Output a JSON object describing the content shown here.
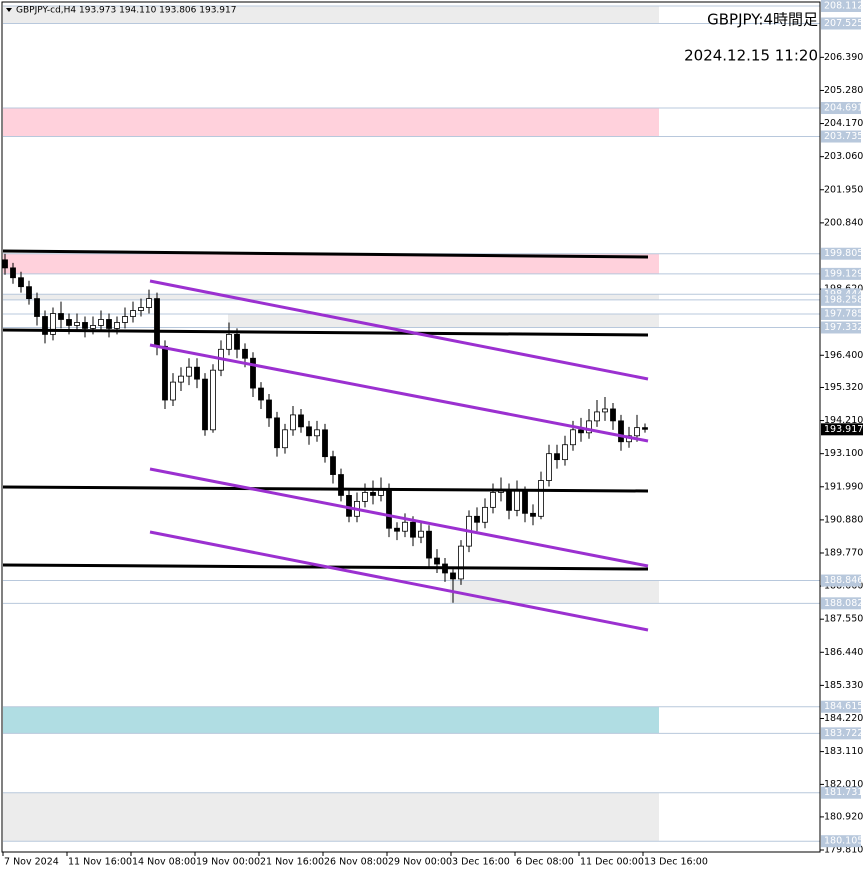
{
  "chart_data": {
    "type": "candlestick",
    "info_text": "GBPJPY-cd,H4  193.973 194.110 193.806 193.917",
    "overlay_texts": [
      "GBPJPY:4時間足",
      "2024.12.15 11:20"
    ],
    "candles": {
      "open": [
        199.6,
        199.33,
        199.0,
        198.7,
        198.3,
        197.7,
        197.1,
        197.8,
        197.6,
        197.4,
        197.5,
        197.3,
        197.4,
        197.6,
        197.3,
        197.5,
        197.7,
        197.9,
        198.0,
        198.3,
        196.7,
        194.9,
        195.5,
        195.7,
        196.0,
        195.6,
        193.9,
        195.9,
        196.6,
        197.1,
        196.6,
        196.3,
        195.3,
        194.9,
        194.3,
        193.3,
        193.9,
        194.4,
        194.0,
        193.7,
        193.9,
        193.0,
        192.4,
        191.7,
        191.0,
        191.5,
        191.8,
        191.7,
        191.9,
        190.6,
        190.5,
        190.8,
        190.3,
        190.5,
        189.6,
        189.4,
        189.1,
        188.9,
        190.0,
        191.0,
        190.8,
        191.3,
        191.8,
        191.9,
        191.2,
        191.9,
        191.1,
        191.0,
        192.2,
        193.1,
        192.9,
        193.4,
        193.9,
        193.8,
        194.2,
        194.5,
        194.6,
        194.2,
        193.5,
        193.7,
        193.973
      ],
      "high": [
        199.8,
        199.5,
        199.2,
        198.9,
        198.5,
        197.9,
        198.0,
        198.2,
        197.8,
        197.8,
        197.7,
        197.7,
        197.9,
        197.8,
        197.7,
        198.0,
        198.2,
        198.3,
        198.6,
        198.5,
        196.9,
        195.8,
        196.0,
        196.3,
        196.3,
        195.8,
        196.1,
        196.9,
        197.5,
        197.3,
        196.8,
        196.5,
        195.5,
        195.1,
        194.5,
        194.1,
        194.7,
        194.6,
        194.2,
        194.2,
        194.1,
        193.2,
        192.6,
        191.9,
        191.8,
        192.1,
        192.2,
        192.3,
        192.1,
        190.8,
        191.1,
        191.0,
        190.8,
        190.7,
        189.9,
        189.6,
        189.3,
        190.2,
        191.2,
        191.3,
        191.6,
        192.1,
        192.3,
        192.1,
        192.2,
        192.0,
        191.4,
        192.5,
        193.4,
        193.4,
        193.7,
        194.2,
        194.3,
        194.6,
        194.9,
        195.0,
        194.8,
        194.4,
        194.0,
        194.4,
        194.11
      ],
      "low": [
        199.1,
        198.8,
        198.5,
        198.1,
        197.4,
        196.8,
        196.9,
        197.3,
        197.1,
        197.2,
        197.0,
        197.1,
        197.2,
        197.0,
        197.1,
        197.3,
        197.5,
        197.7,
        197.8,
        196.4,
        194.6,
        194.7,
        195.2,
        195.4,
        195.3,
        193.7,
        193.8,
        195.7,
        196.4,
        196.3,
        196.0,
        195.0,
        194.6,
        194.0,
        193.0,
        193.1,
        193.7,
        193.8,
        193.4,
        193.5,
        192.8,
        192.1,
        191.5,
        190.8,
        190.8,
        191.3,
        191.4,
        191.5,
        190.3,
        190.2,
        190.3,
        190.0,
        190.1,
        189.3,
        189.1,
        188.8,
        188.1,
        188.7,
        189.8,
        190.5,
        190.6,
        191.1,
        191.5,
        190.9,
        191.0,
        190.8,
        190.7,
        190.9,
        192.0,
        192.6,
        192.7,
        193.2,
        193.5,
        193.6,
        194.0,
        194.2,
        193.9,
        193.2,
        193.3,
        193.5,
        193.806
      ],
      "close": [
        199.33,
        199.0,
        198.7,
        198.3,
        197.7,
        197.1,
        197.8,
        197.6,
        197.4,
        197.5,
        197.3,
        197.4,
        197.6,
        197.3,
        197.5,
        197.7,
        197.9,
        198.0,
        198.3,
        196.7,
        194.9,
        195.5,
        195.7,
        196.0,
        195.6,
        193.9,
        195.9,
        196.6,
        197.1,
        196.6,
        196.3,
        195.3,
        194.9,
        194.3,
        193.3,
        193.9,
        194.4,
        194.0,
        193.7,
        193.9,
        193.0,
        192.4,
        191.7,
        191.0,
        191.5,
        191.8,
        191.7,
        191.9,
        190.6,
        190.5,
        190.8,
        190.3,
        190.5,
        189.6,
        189.4,
        189.1,
        188.9,
        190.0,
        191.0,
        190.8,
        191.3,
        191.8,
        191.9,
        191.2,
        191.9,
        191.1,
        191.0,
        192.2,
        193.1,
        192.9,
        193.4,
        193.9,
        193.8,
        194.2,
        194.5,
        194.6,
        194.2,
        193.5,
        193.7,
        193.973,
        193.917
      ]
    },
    "xlim": [
      -0.25,
      81.75
    ],
    "xticks": [
      {
        "value": -0.25,
        "label": "7 Nov 2024"
      },
      {
        "value": 7.75,
        "label": "11 Nov 16:00"
      },
      {
        "value": 15.75,
        "label": "14 Nov 08:00"
      },
      {
        "value": 23.75,
        "label": "19 Nov 00:00"
      },
      {
        "value": 31.75,
        "label": "21 Nov 16:00"
      },
      {
        "value": 39.75,
        "label": "26 Nov 08:00"
      },
      {
        "value": 47.75,
        "label": "29 Nov 00:00"
      },
      {
        "value": 55.75,
        "label": "3 Dec 16:00"
      },
      {
        "value": 63.75,
        "label": "6 Dec 08:00"
      },
      {
        "value": 71.75,
        "label": "11 Dec 00:00"
      },
      {
        "value": 79.75,
        "label": "13 Dec 16:00"
      }
    ],
    "ylim": [
      179.81,
      208.112
    ],
    "yticks": [
      {
        "value": 206.39,
        "label": "206.390"
      },
      {
        "value": 205.28,
        "label": "205.280"
      },
      {
        "value": 204.17,
        "label": "204.170"
      },
      {
        "value": 203.06,
        "label": "203.060"
      },
      {
        "value": 201.95,
        "label": "201.950"
      },
      {
        "value": 200.84,
        "label": "200.840"
      },
      {
        "value": 198.62,
        "label": "198.620"
      },
      {
        "value": 196.4,
        "label": "196.400"
      },
      {
        "value": 195.32,
        "label": "195.320"
      },
      {
        "value": 194.21,
        "label": "194.210"
      },
      {
        "value": 193.1,
        "label": "193.100"
      },
      {
        "value": 191.99,
        "label": "191.990"
      },
      {
        "value": 190.88,
        "label": "190.880"
      },
      {
        "value": 189.77,
        "label": "189.770"
      },
      {
        "value": 188.66,
        "label": "188.660"
      },
      {
        "value": 187.55,
        "label": "187.550"
      },
      {
        "value": 186.44,
        "label": "186.440"
      },
      {
        "value": 185.33,
        "label": "185.330"
      },
      {
        "value": 184.22,
        "label": "184.220"
      },
      {
        "value": 183.11,
        "label": "183.110"
      },
      {
        "value": 182.01,
        "label": "182.010"
      },
      {
        "value": 180.92,
        "label": "180.920"
      },
      {
        "value": 179.81,
        "label": "179.810"
      }
    ],
    "levels": [
      {
        "value": 208.112,
        "label": "208.112"
      },
      {
        "value": 207.525,
        "label": "207.525"
      },
      {
        "value": 204.691,
        "label": "204.691"
      },
      {
        "value": 203.735,
        "label": "203.735"
      },
      {
        "value": 199.805,
        "label": "199.805"
      },
      {
        "value": 199.129,
        "label": "199.129"
      },
      {
        "value": 198.444,
        "label": "198.444"
      },
      {
        "value": 198.258,
        "label": "198.258"
      },
      {
        "value": 197.785,
        "label": "197.785"
      },
      {
        "value": 197.332,
        "label": "197.332"
      },
      {
        "value": 188.846,
        "label": "188.846"
      },
      {
        "value": 188.082,
        "label": "188.082"
      },
      {
        "value": 184.615,
        "label": "184.615"
      },
      {
        "value": 183.722,
        "label": "183.722"
      },
      {
        "value": 181.731,
        "label": "181.731"
      },
      {
        "value": 180.105,
        "label": "180.105"
      }
    ],
    "current_price": {
      "value": 193.917,
      "label": "193.917"
    },
    "zones": [
      {
        "top": 208.112,
        "bottom": 207.525,
        "color": "#ececec"
      },
      {
        "top": 204.691,
        "bottom": 203.735,
        "color": "#ffd1dc"
      },
      {
        "top": 199.805,
        "bottom": 199.129,
        "color": "#ffd1dc"
      },
      {
        "top": 198.444,
        "bottom": 198.258,
        "color": "#ececec"
      },
      {
        "top": 197.785,
        "bottom": 197.332,
        "color": "#ececec",
        "from": 27.875
      },
      {
        "top": 188.846,
        "bottom": 188.082,
        "color": "#ececec",
        "from": 55.625
      },
      {
        "top": 184.615,
        "bottom": 183.722,
        "color": "#b0dde3"
      },
      {
        "top": 181.731,
        "bottom": 180.105,
        "color": "#ececec"
      }
    ],
    "trendlines": [
      {
        "x": [
          -0.25,
          80.375
        ],
        "y": [
          199.896,
          199.695
        ],
        "color": "#000000"
      },
      {
        "x": [
          -0.25,
          80.375
        ],
        "y": [
          197.247,
          197.079
        ],
        "color": "#000000"
      },
      {
        "x": [
          -0.25,
          80.375
        ],
        "y": [
          191.982,
          191.848
        ],
        "color": "#000000"
      },
      {
        "x": [
          -0.25,
          80.375
        ],
        "y": [
          189.366,
          189.232
        ],
        "color": "#000000"
      },
      {
        "x": [
          18.125,
          80.375
        ],
        "y": [
          198.89,
          195.604
        ],
        "color": "#9b30d0"
      },
      {
        "x": [
          18.125,
          80.375
        ],
        "y": [
          196.744,
          193.525
        ],
        "color": "#9b30d0"
      },
      {
        "x": [
          18.125,
          80.375
        ],
        "y": [
          192.586,
          189.333
        ],
        "color": "#9b30d0"
      },
      {
        "x": [
          18.125,
          80.375
        ],
        "y": [
          190.473,
          187.187
        ],
        "color": "#9b30d0"
      }
    ]
  }
}
